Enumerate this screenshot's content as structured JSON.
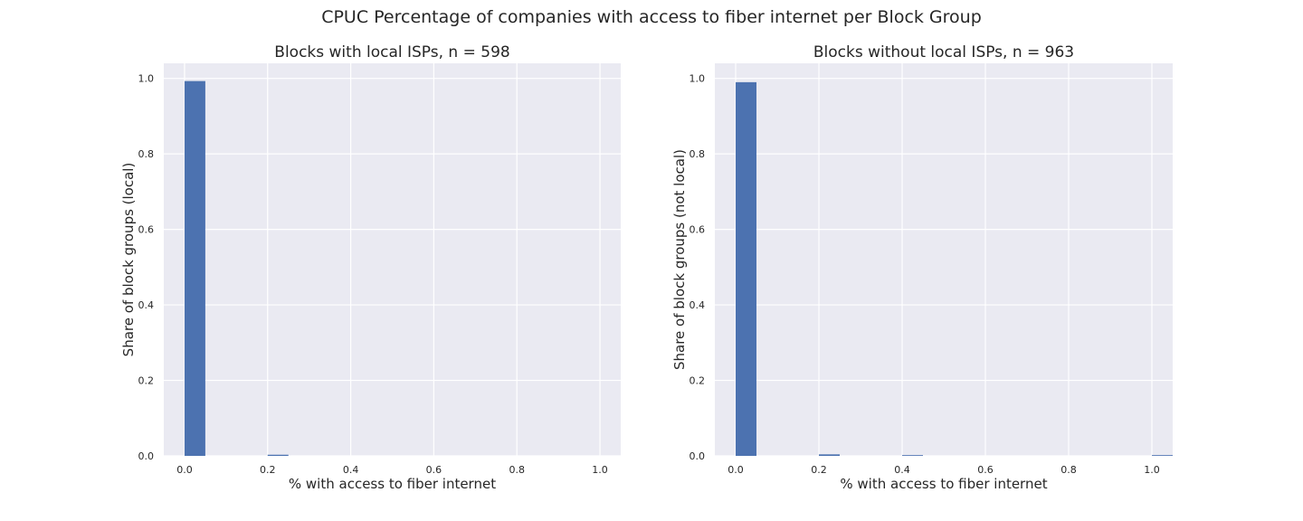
{
  "figure_title": "CPUC Percentage of companies with access to fiber internet per Block Group",
  "chart_data": [
    {
      "type": "bar",
      "title": "Blocks with local ISPs, n = 598",
      "xlabel": "% with access to fiber internet",
      "ylabel": "Share of block groups (local)",
      "xlim": [
        -0.05,
        1.05
      ],
      "ylim": [
        0,
        1.04
      ],
      "xticks": [
        0.0,
        0.2,
        0.4,
        0.6,
        0.8,
        1.0
      ],
      "yticks": [
        0.0,
        0.2,
        0.4,
        0.6,
        0.8,
        1.0
      ],
      "grid": true,
      "bin_width": 0.05,
      "bars": [
        {
          "x": 0.0,
          "value": 0.993
        },
        {
          "x": 0.2,
          "value": 0.003
        }
      ]
    },
    {
      "type": "bar",
      "title": "Blocks without local ISPs, n = 963",
      "xlabel": "% with access to fiber internet",
      "ylabel": "Share of block groups (not local)",
      "xlim": [
        -0.05,
        1.05
      ],
      "ylim": [
        0,
        1.04
      ],
      "xticks": [
        0.0,
        0.2,
        0.4,
        0.6,
        0.8,
        1.0
      ],
      "yticks": [
        0.0,
        0.2,
        0.4,
        0.6,
        0.8,
        1.0
      ],
      "grid": true,
      "bin_width": 0.05,
      "bars": [
        {
          "x": 0.0,
          "value": 0.99
        },
        {
          "x": 0.2,
          "value": 0.004
        },
        {
          "x": 0.4,
          "value": 0.002
        },
        {
          "x": 1.0,
          "value": 0.002
        }
      ]
    }
  ]
}
